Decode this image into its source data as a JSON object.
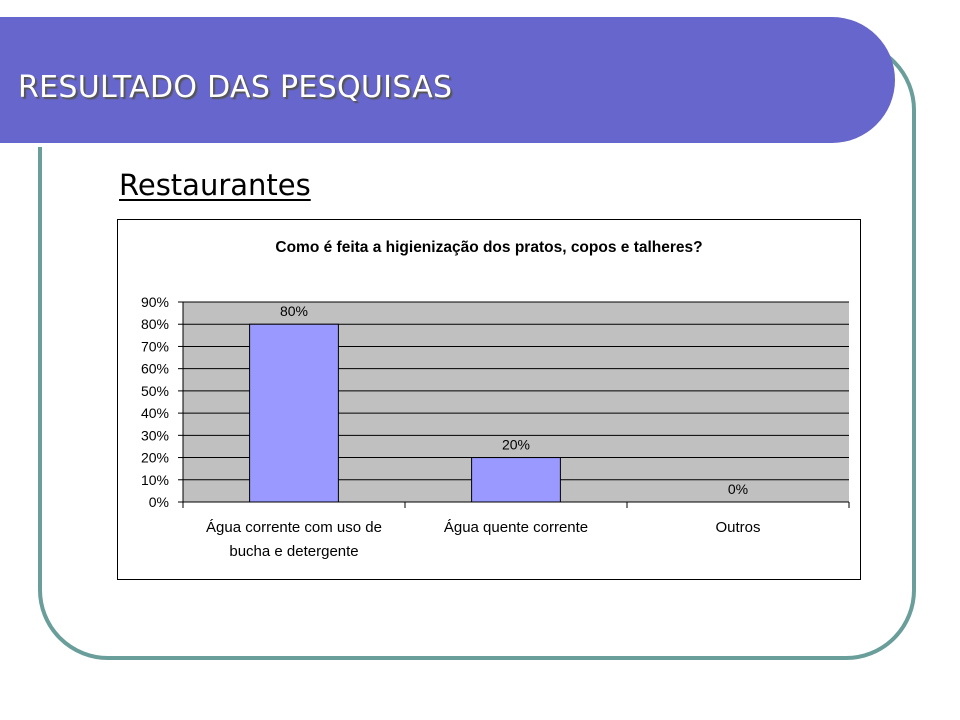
{
  "slide": {
    "title": "RESULTADO DAS PESQUISAS",
    "subtitle": "Restaurantes",
    "colors": {
      "header": "#6666cc",
      "frame": "#6a9e9a",
      "bar": "#9999ff",
      "plot_bg": "#c0c0c0"
    }
  },
  "chart_data": {
    "type": "bar",
    "title": "Como é feita a higienização dos pratos, copos e talheres?",
    "categories": [
      [
        "Água corrente com uso de",
        "bucha e detergente"
      ],
      [
        "Água quente corrente"
      ],
      [
        "Outros"
      ]
    ],
    "values": [
      80,
      20,
      0
    ],
    "data_labels": [
      "80%",
      "20%",
      "0%"
    ],
    "yticks": [
      "0%",
      "10%",
      "20%",
      "30%",
      "40%",
      "50%",
      "60%",
      "70%",
      "80%",
      "90%"
    ],
    "ylim": [
      0,
      90
    ],
    "grid": true,
    "legend": "none",
    "xlabel": "",
    "ylabel": ""
  }
}
